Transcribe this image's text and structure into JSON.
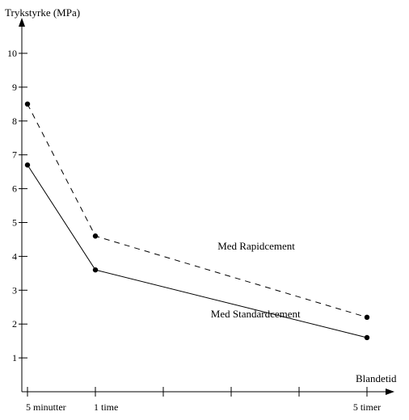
{
  "chart_data": {
    "type": "line",
    "ylabel": "Trykstyrke (MPa)",
    "xlabel": "Blandetid",
    "categories": [
      "5 minutter",
      "1 time",
      "5 timer"
    ],
    "x_positions": [
      0,
      1,
      5
    ],
    "x_ticks": [
      0,
      1,
      2,
      3,
      4,
      5
    ],
    "xlim": [
      0,
      5.5
    ],
    "ylim": [
      0,
      10.5
    ],
    "y_ticks": [
      1,
      2,
      3,
      4,
      5,
      6,
      7,
      8,
      9,
      10
    ],
    "grid": false,
    "series": [
      {
        "name": "Med Rapidcement",
        "style": "dashed",
        "values": [
          8.5,
          4.6,
          2.2
        ]
      },
      {
        "name": "Med Standardcement",
        "style": "solid",
        "values": [
          6.7,
          3.6,
          1.6
        ]
      }
    ],
    "annotations": [
      {
        "text": "Med Rapidcement",
        "x": 2.8,
        "y": 4.2
      },
      {
        "text": "Med Standardcement",
        "x": 2.7,
        "y": 2.2
      }
    ],
    "colors": {
      "line": "#000000"
    }
  }
}
